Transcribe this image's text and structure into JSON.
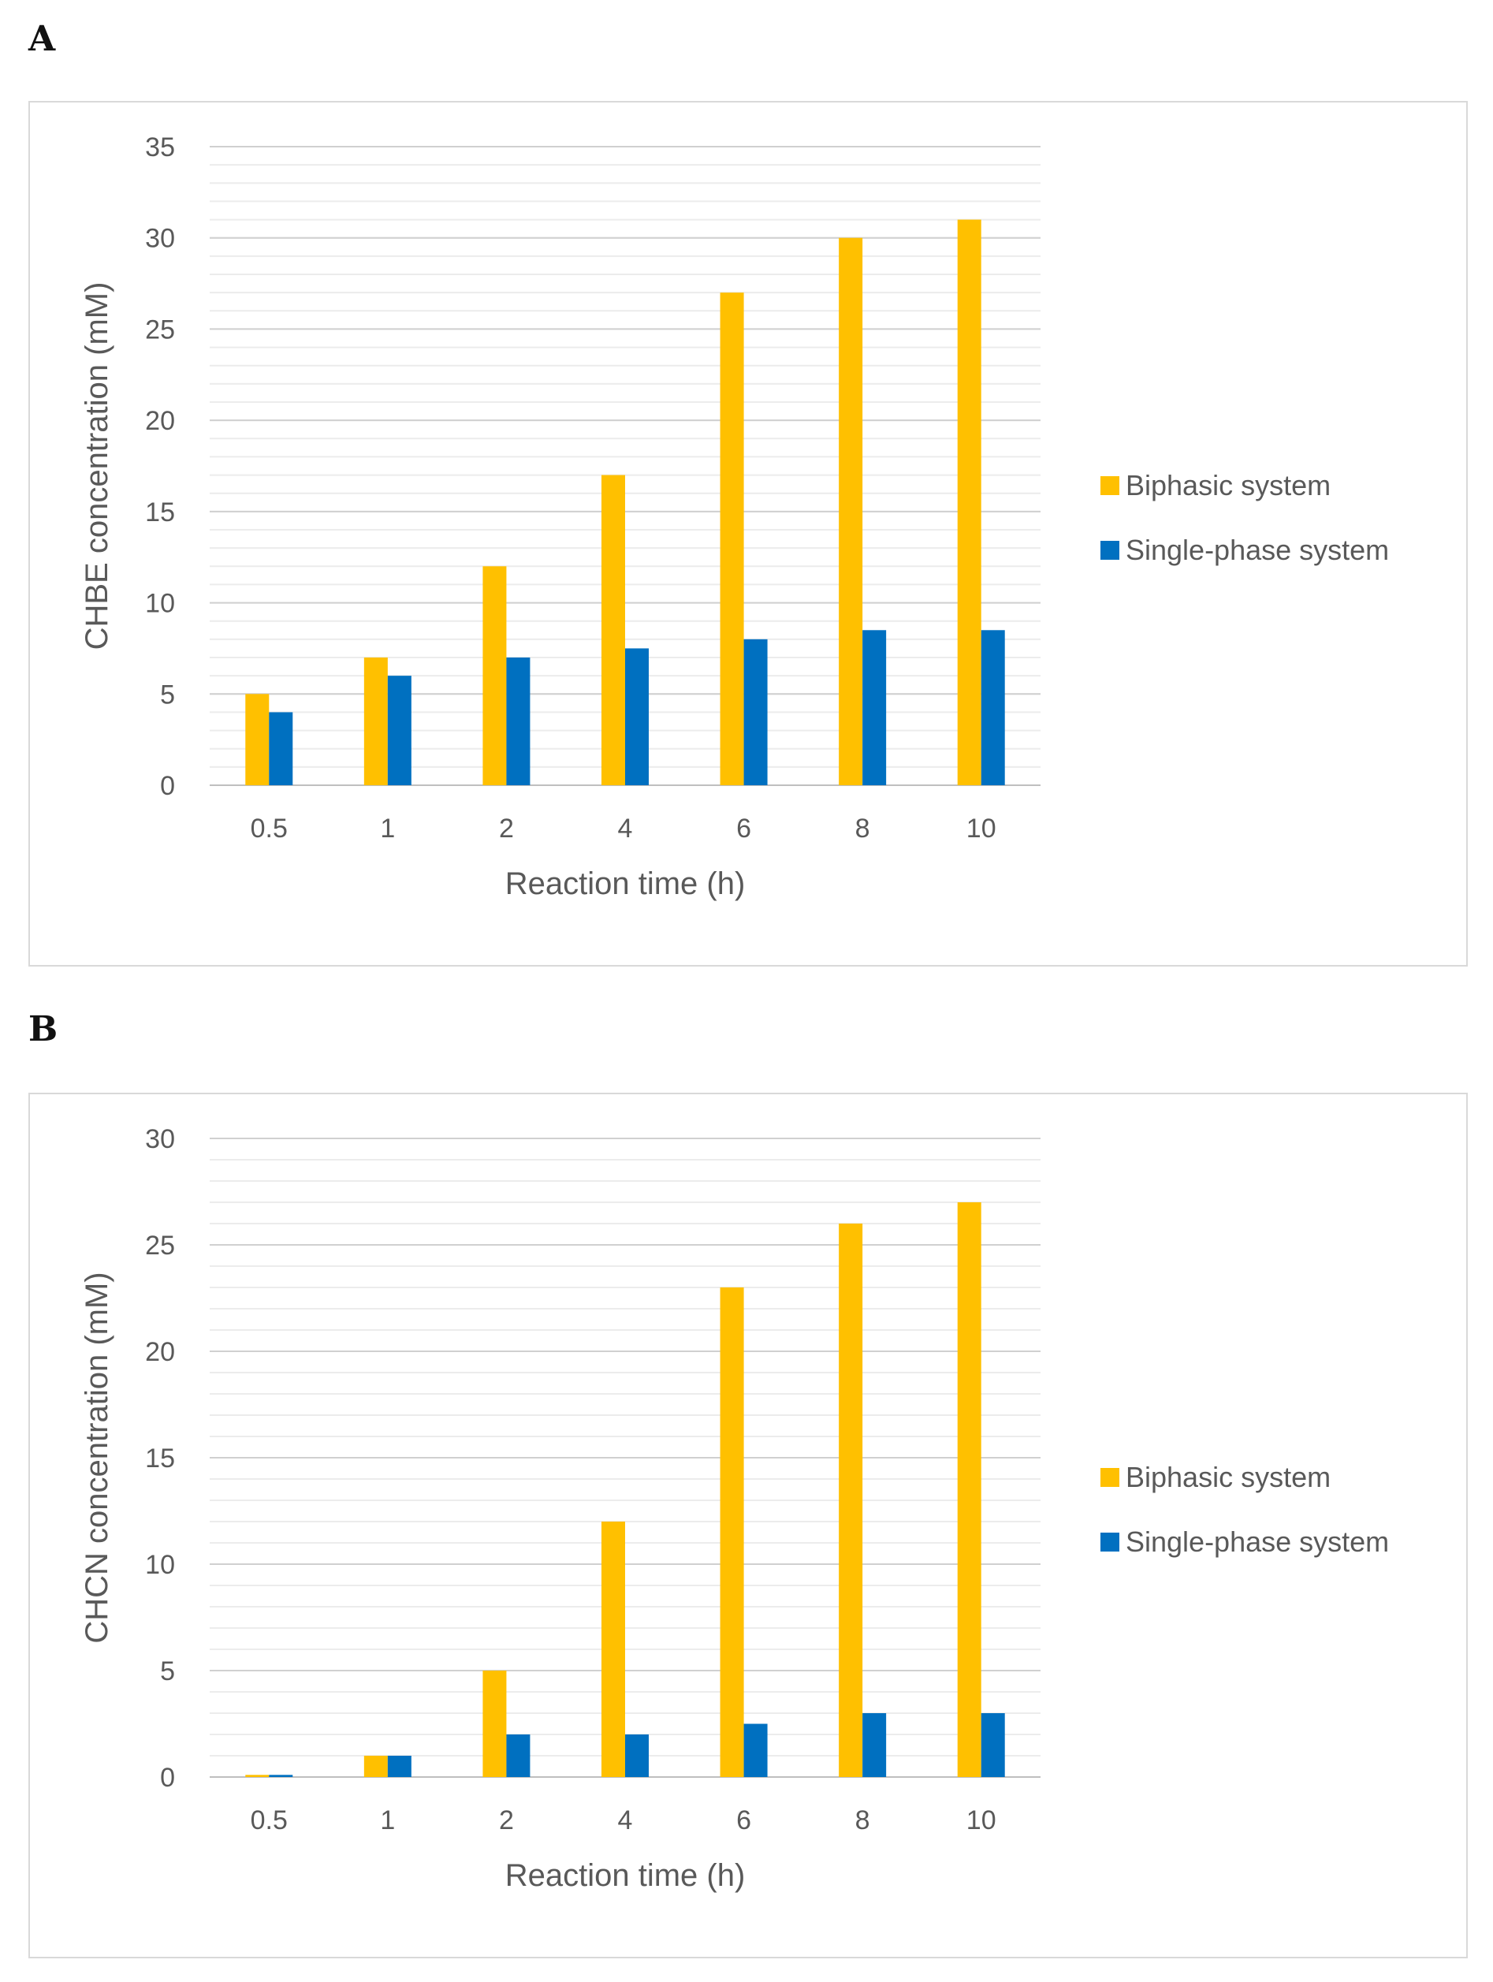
{
  "chart_data": [
    {
      "panel": "A",
      "type": "bar",
      "categories": [
        "0.5",
        "1",
        "2",
        "4",
        "6",
        "8",
        "10"
      ],
      "series": [
        {
          "name": "Biphasic system",
          "color": "#FFC000",
          "values": [
            5,
            7,
            12,
            17,
            27,
            30,
            31
          ]
        },
        {
          "name": "Single-phase system",
          "color": "#0070C0",
          "values": [
            4,
            6,
            7,
            7.5,
            8,
            8.5,
            8.5
          ]
        }
      ],
      "xlabel": "Reaction time (h)",
      "ylabel": "CHBE concentration (mM)",
      "ylim": [
        0,
        35
      ],
      "yticks": [
        "0",
        "5",
        "10",
        "15",
        "20",
        "25",
        "30",
        "35"
      ],
      "minor_step": 1,
      "grid": true,
      "legend_position": "right"
    },
    {
      "panel": "B",
      "type": "bar",
      "categories": [
        "0.5",
        "1",
        "2",
        "4",
        "6",
        "8",
        "10"
      ],
      "series": [
        {
          "name": "Biphasic system",
          "color": "#FFC000",
          "values": [
            0.1,
            1,
            5,
            12,
            23,
            26,
            27
          ]
        },
        {
          "name": "Single-phase system",
          "color": "#0070C0",
          "values": [
            0.1,
            1,
            2,
            2,
            2.5,
            3,
            3
          ]
        }
      ],
      "xlabel": "Reaction time (h)",
      "ylabel": "CHCN concentration (mM)",
      "ylim": [
        0,
        30
      ],
      "yticks": [
        "0",
        "5",
        "10",
        "15",
        "20",
        "25",
        "30"
      ],
      "minor_step": 1,
      "grid": true,
      "legend_position": "right"
    }
  ]
}
